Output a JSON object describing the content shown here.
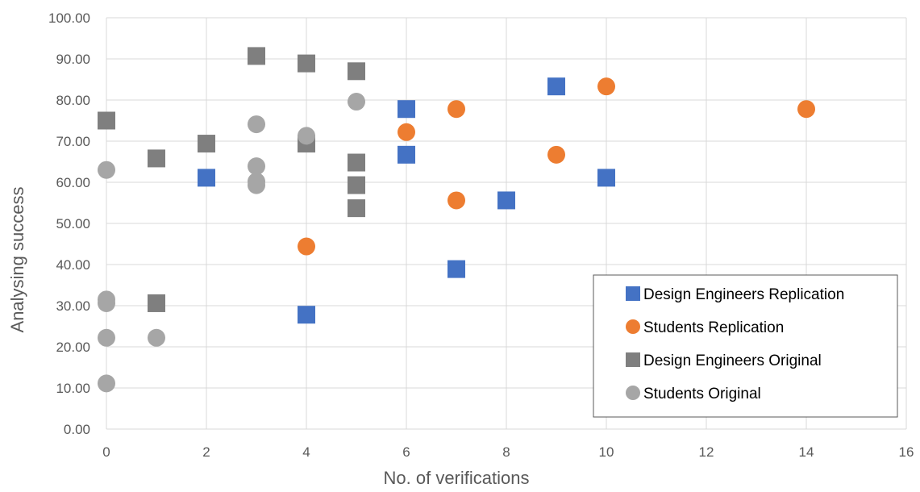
{
  "chart_data": {
    "type": "scatter",
    "title": "",
    "xlabel": "No. of verifications",
    "ylabel": "Analysing success",
    "xlim": [
      0,
      16
    ],
    "ylim": [
      0,
      100
    ],
    "x_ticks": [
      0,
      2,
      4,
      6,
      8,
      10,
      12,
      14,
      16
    ],
    "y_ticks": [
      "0.00",
      "10.00",
      "20.00",
      "30.00",
      "40.00",
      "50.00",
      "60.00",
      "70.00",
      "80.00",
      "90.00",
      "100.00"
    ],
    "grid": true,
    "legend_position": "bottom-right",
    "series": [
      {
        "name": "Design Engineers Replication",
        "marker": "square",
        "color": "#4472c4",
        "points": [
          [
            2,
            61.1
          ],
          [
            4,
            27.8
          ],
          [
            6,
            77.8
          ],
          [
            6,
            66.7
          ],
          [
            7,
            38.9
          ],
          [
            8,
            55.6
          ],
          [
            9,
            83.3
          ],
          [
            10,
            61.1
          ]
        ]
      },
      {
        "name": "Students Replication",
        "marker": "circle",
        "color": "#ed7d31",
        "points": [
          [
            4,
            44.4
          ],
          [
            6,
            72.2
          ],
          [
            7,
            77.8
          ],
          [
            7,
            55.6
          ],
          [
            9,
            66.7
          ],
          [
            10,
            83.3
          ],
          [
            14,
            77.8
          ]
        ]
      },
      {
        "name": "Design Engineers Original",
        "marker": "square",
        "color": "#7f7f7f",
        "points": [
          [
            0,
            75.0
          ],
          [
            1,
            65.8
          ],
          [
            1,
            30.6
          ],
          [
            2,
            69.4
          ],
          [
            3,
            90.7
          ],
          [
            4,
            88.9
          ],
          [
            4,
            69.4
          ],
          [
            5,
            87.0
          ],
          [
            5,
            64.8
          ],
          [
            5,
            59.3
          ],
          [
            5,
            53.7
          ]
        ]
      },
      {
        "name": "Students Original",
        "marker": "circle",
        "color": "#a6a6a6",
        "points": [
          [
            0,
            63.0
          ],
          [
            0,
            31.5
          ],
          [
            0,
            30.6
          ],
          [
            0,
            22.2
          ],
          [
            0,
            11.1
          ],
          [
            1,
            22.2
          ],
          [
            3,
            74.1
          ],
          [
            3,
            63.9
          ],
          [
            3,
            60.2
          ],
          [
            3,
            59.3
          ],
          [
            4,
            71.3
          ],
          [
            5,
            79.6
          ]
        ]
      }
    ]
  }
}
